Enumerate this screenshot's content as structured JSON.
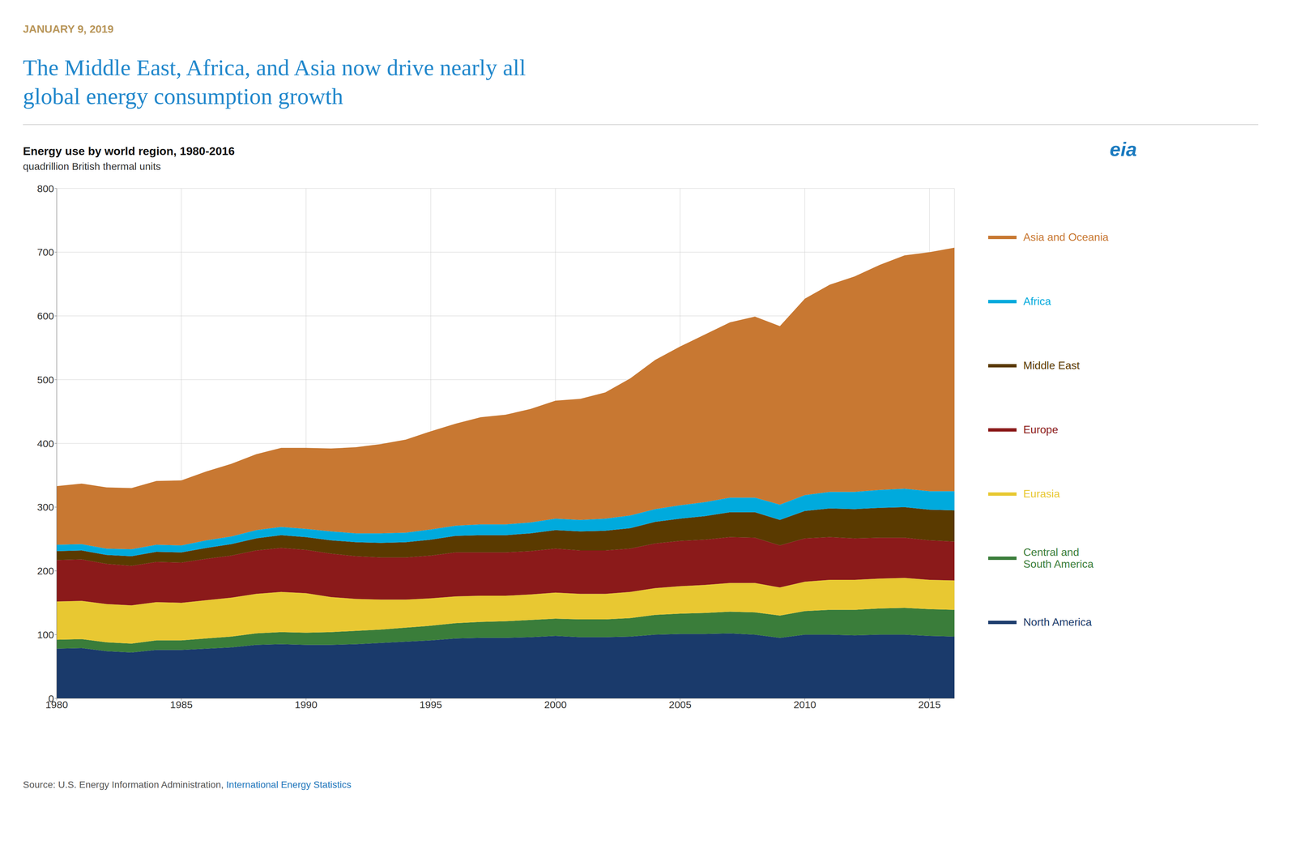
{
  "chart_data": {
    "type": "area",
    "stacked": true,
    "grid": true,
    "legend": "right",
    "date": {
      "text": "JANUARY 9, 2019",
      "color": "#b8965a"
    },
    "title": {
      "text": "The Middle East, Africa, and Asia now drive nearly all\nglobal energy consumption growth",
      "color": "#2288cc"
    },
    "subtitle": {
      "text": "Energy use by world region, 1980-2016",
      "color": "#111111"
    },
    "ylabel": {
      "text": "quadrillion British thermal units",
      "color": "#333333"
    },
    "logo": {
      "text": "eia",
      "color": "#1a7abf"
    },
    "source": [
      {
        "text": "Source: U.S. Energy Information Administration, ",
        "color": "#555555"
      },
      {
        "text": "International Energy Statistics",
        "color": "#2277bb"
      }
    ],
    "x": [
      1980,
      1981,
      1982,
      1983,
      1984,
      1985,
      1986,
      1987,
      1988,
      1989,
      1990,
      1991,
      1992,
      1993,
      1994,
      1995,
      1996,
      1997,
      1998,
      1999,
      2000,
      2001,
      2002,
      2003,
      2004,
      2005,
      2006,
      2007,
      2008,
      2009,
      2010,
      2011,
      2012,
      2013,
      2014,
      2015,
      2016
    ],
    "series": [
      {
        "name": "North America",
        "color": "#1a3a6b",
        "values": [
          78,
          79,
          74,
          72,
          76,
          76,
          78,
          80,
          84,
          85,
          84,
          84,
          85,
          87,
          89,
          91,
          94,
          95,
          95,
          96,
          98,
          96,
          96,
          97,
          100,
          101,
          101,
          102,
          100,
          95,
          100,
          100,
          99,
          100,
          100,
          98,
          97
        ]
      },
      {
        "name": "Central and\nSouth America",
        "color": "#3a7d3a",
        "values": [
          14,
          14,
          14,
          14,
          15,
          15,
          16,
          17,
          18,
          19,
          19,
          20,
          21,
          21,
          22,
          23,
          24,
          25,
          26,
          27,
          27,
          28,
          28,
          29,
          31,
          32,
          33,
          34,
          35,
          35,
          37,
          39,
          40,
          41,
          42,
          42,
          42
        ]
      },
      {
        "name": "Eurasia",
        "color": "#e8c832",
        "values": [
          60,
          60,
          60,
          60,
          60,
          59,
          60,
          61,
          62,
          63,
          62,
          55,
          50,
          47,
          44,
          43,
          42,
          41,
          40,
          40,
          41,
          40,
          40,
          41,
          42,
          43,
          44,
          45,
          46,
          44,
          46,
          47,
          47,
          47,
          47,
          46,
          46
        ]
      },
      {
        "name": "Europe",
        "color": "#8b1a1a",
        "values": [
          65,
          65,
          63,
          62,
          63,
          63,
          65,
          66,
          68,
          69,
          68,
          68,
          67,
          66,
          66,
          67,
          69,
          68,
          68,
          68,
          69,
          68,
          68,
          68,
          70,
          71,
          71,
          72,
          71,
          66,
          68,
          67,
          65,
          64,
          63,
          62,
          61
        ]
      },
      {
        "name": "Middle East",
        "color": "#5a3a00",
        "values": [
          14,
          14,
          14,
          15,
          16,
          16,
          17,
          18,
          19,
          20,
          20,
          21,
          22,
          23,
          24,
          25,
          26,
          27,
          27,
          28,
          29,
          30,
          31,
          32,
          34,
          35,
          37,
          39,
          40,
          40,
          43,
          45,
          46,
          47,
          48,
          48,
          49
        ]
      },
      {
        "name": "Africa",
        "color": "#00aadd",
        "values": [
          10,
          10,
          10,
          11,
          11,
          11,
          12,
          12,
          13,
          13,
          13,
          14,
          14,
          15,
          15,
          16,
          16,
          17,
          17,
          17,
          18,
          18,
          19,
          20,
          20,
          21,
          22,
          23,
          23,
          24,
          25,
          26,
          27,
          28,
          29,
          29,
          30
        ]
      },
      {
        "name": "Asia and Oceania",
        "color": "#c87832",
        "values": [
          92,
          95,
          96,
          96,
          100,
          102,
          108,
          114,
          119,
          124,
          127,
          130,
          135,
          140,
          146,
          154,
          160,
          168,
          172,
          178,
          185,
          190,
          198,
          215,
          234,
          249,
          263,
          275,
          284,
          280,
          308,
          325,
          338,
          353,
          366,
          375,
          382
        ]
      }
    ],
    "xlim": [
      1980,
      2016
    ],
    "xticks": [
      1980,
      1985,
      1990,
      1995,
      2000,
      2005,
      2010,
      2015
    ],
    "ylim": [
      0,
      800
    ],
    "yticks": [
      0,
      100,
      200,
      300,
      400,
      500,
      600,
      700,
      800
    ]
  }
}
